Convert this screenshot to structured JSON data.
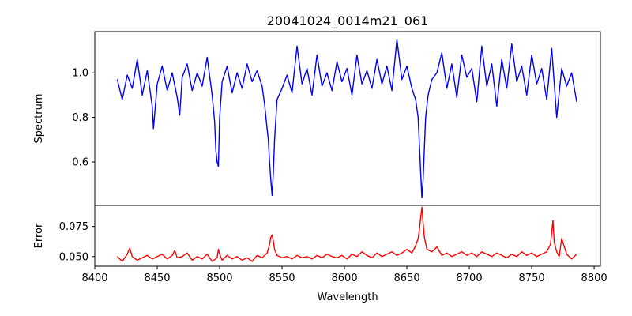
{
  "chart_data": {
    "type": "line",
    "title": "20041024_0014m21_061",
    "xlabel": "Wavelength",
    "xlim": [
      8400,
      8805
    ],
    "xticks": [
      8400,
      8450,
      8500,
      8550,
      8600,
      8650,
      8700,
      8750,
      8800
    ],
    "panels": [
      {
        "ylabel": "Spectrum",
        "ylim": [
          0.405,
          1.185
        ],
        "yticks": [
          0.6,
          0.8,
          1.0
        ],
        "ytick_labels": [
          "0.6",
          "0.8",
          "1.0"
        ],
        "series": [
          {
            "color": "#0000ff",
            "x": [
              8418,
              8422,
              8426,
              8430,
              8434,
              8438,
              8442,
              8446,
              8447,
              8450,
              8454,
              8458,
              8462,
              8466,
              8468,
              8470,
              8474,
              8478,
              8482,
              8486,
              8490,
              8494,
              8496,
              8497,
              8498,
              8499,
              8500,
              8502,
              8506,
              8510,
              8514,
              8518,
              8522,
              8526,
              8530,
              8534,
              8536,
              8538,
              8539,
              8540,
              8541,
              8542,
              8543,
              8544,
              8546,
              8550,
              8554,
              8558,
              8562,
              8566,
              8570,
              8574,
              8578,
              8582,
              8586,
              8590,
              8594,
              8598,
              8602,
              8606,
              8610,
              8614,
              8618,
              8622,
              8626,
              8630,
              8634,
              8638,
              8642,
              8646,
              8650,
              8654,
              8657,
              8659,
              8660,
              8661,
              8662,
              8663,
              8664,
              8665,
              8667,
              8670,
              8674,
              8678,
              8682,
              8686,
              8690,
              8694,
              8698,
              8702,
              8706,
              8710,
              8714,
              8718,
              8722,
              8726,
              8730,
              8734,
              8738,
              8742,
              8746,
              8750,
              8754,
              8758,
              8762,
              8766,
              8770,
              8774,
              8778,
              8782,
              8786
            ],
            "y": [
              0.97,
              0.88,
              0.99,
              0.93,
              1.06,
              0.9,
              1.01,
              0.85,
              0.75,
              0.95,
              1.03,
              0.92,
              1.0,
              0.89,
              0.81,
              0.98,
              1.04,
              0.92,
              1.0,
              0.94,
              1.07,
              0.9,
              0.78,
              0.65,
              0.6,
              0.58,
              0.8,
              0.96,
              1.03,
              0.91,
              1.0,
              0.93,
              1.04,
              0.96,
              1.01,
              0.94,
              0.86,
              0.75,
              0.7,
              0.6,
              0.52,
              0.45,
              0.55,
              0.7,
              0.88,
              0.93,
              0.99,
              0.91,
              1.12,
              0.95,
              1.02,
              0.9,
              1.08,
              0.94,
              1.0,
              0.92,
              1.05,
              0.96,
              1.02,
              0.9,
              1.08,
              0.95,
              1.01,
              0.93,
              1.06,
              0.95,
              1.03,
              0.92,
              1.15,
              0.97,
              1.03,
              0.93,
              0.88,
              0.8,
              0.68,
              0.56,
              0.44,
              0.52,
              0.66,
              0.8,
              0.9,
              0.97,
              1.0,
              1.09,
              0.93,
              1.04,
              0.89,
              1.08,
              0.98,
              1.02,
              0.87,
              1.12,
              0.94,
              1.04,
              0.85,
              1.06,
              0.93,
              1.13,
              0.96,
              1.03,
              0.9,
              1.08,
              0.95,
              1.02,
              0.88,
              1.11,
              0.8,
              1.02,
              0.94,
              1.0,
              0.87
            ]
          }
        ]
      },
      {
        "ylabel": "Error",
        "ylim": [
          0.042,
          0.0925
        ],
        "yticks": [
          0.05,
          0.075
        ],
        "ytick_labels": [
          "0.050",
          "0.075"
        ],
        "series": [
          {
            "color": "#ff0000",
            "x": [
              8418,
              8422,
              8426,
              8428,
              8430,
              8434,
              8438,
              8442,
              8446,
              8450,
              8454,
              8458,
              8462,
              8464,
              8466,
              8470,
              8474,
              8478,
              8482,
              8486,
              8490,
              8494,
              8498,
              8499,
              8500,
              8502,
              8506,
              8510,
              8514,
              8518,
              8522,
              8526,
              8530,
              8534,
              8538,
              8540,
              8541,
              8542,
              8543,
              8544,
              8546,
              8550,
              8554,
              8558,
              8562,
              8566,
              8570,
              8574,
              8578,
              8582,
              8586,
              8590,
              8594,
              8598,
              8602,
              8606,
              8610,
              8614,
              8618,
              8622,
              8626,
              8630,
              8634,
              8638,
              8642,
              8646,
              8650,
              8654,
              8657,
              8659,
              8660,
              8661,
              8662,
              8663,
              8664,
              8666,
              8670,
              8674,
              8678,
              8682,
              8686,
              8690,
              8694,
              8698,
              8702,
              8706,
              8710,
              8714,
              8718,
              8722,
              8726,
              8730,
              8734,
              8738,
              8742,
              8746,
              8750,
              8754,
              8758,
              8762,
              8765,
              8766,
              8767,
              8768,
              8770,
              8772,
              8774,
              8778,
              8782,
              8786
            ],
            "y": [
              0.05,
              0.046,
              0.052,
              0.057,
              0.05,
              0.047,
              0.049,
              0.051,
              0.048,
              0.05,
              0.052,
              0.048,
              0.051,
              0.055,
              0.049,
              0.05,
              0.053,
              0.047,
              0.05,
              0.048,
              0.052,
              0.046,
              0.049,
              0.056,
              0.052,
              0.047,
              0.051,
              0.048,
              0.05,
              0.047,
              0.049,
              0.046,
              0.051,
              0.049,
              0.053,
              0.06,
              0.066,
              0.068,
              0.063,
              0.056,
              0.051,
              0.049,
              0.05,
              0.048,
              0.051,
              0.049,
              0.05,
              0.048,
              0.051,
              0.049,
              0.052,
              0.05,
              0.049,
              0.051,
              0.048,
              0.052,
              0.05,
              0.054,
              0.051,
              0.049,
              0.053,
              0.05,
              0.052,
              0.054,
              0.051,
              0.053,
              0.056,
              0.053,
              0.059,
              0.065,
              0.072,
              0.082,
              0.091,
              0.078,
              0.066,
              0.056,
              0.054,
              0.058,
              0.051,
              0.053,
              0.05,
              0.052,
              0.054,
              0.051,
              0.053,
              0.05,
              0.054,
              0.052,
              0.05,
              0.053,
              0.051,
              0.049,
              0.052,
              0.05,
              0.054,
              0.051,
              0.053,
              0.05,
              0.052,
              0.054,
              0.06,
              0.07,
              0.08,
              0.062,
              0.054,
              0.05,
              0.065,
              0.052,
              0.048,
              0.052
            ]
          }
        ]
      }
    ],
    "grid": false,
    "legend": "none"
  }
}
